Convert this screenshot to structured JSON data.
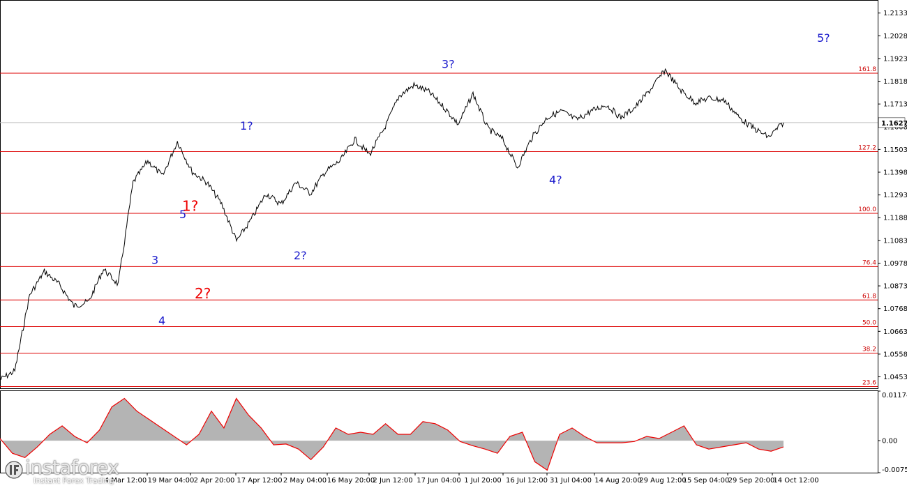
{
  "chart_data": [
    {
      "type": "line",
      "pane": "price",
      "title": "",
      "xlabel": "",
      "ylabel": "",
      "ylim": [
        1.04,
        1.219
      ],
      "y_ticks": [
        "1.2133",
        "1.2028",
        "1.1923",
        "1.1818",
        "1.1713",
        "1.1608",
        "1.1503",
        "1.1398",
        "1.1293",
        "1.1188",
        "1.1083",
        "1.0978",
        "1.0873",
        "1.0768",
        "1.0663",
        "1.0558",
        "1.0453"
      ],
      "x_ticks": [
        "4 Mar 12:00",
        "19 Mar 04:00",
        "2 Apr 20:00",
        "17 Apr 12:00",
        "2 May 04:00",
        "16 May 20:00",
        "2 Jun 12:00",
        "17 Jun 04:00",
        "1 Jul 20:00",
        "16 Jul 12:00",
        "31 Jul 04:00",
        "14 Aug 20:00",
        "29 Aug 12:00",
        "15 Sep 04:00",
        "29 Sep 20:00",
        "14 Oct 12:00"
      ],
      "current_price": "1.1627",
      "fib_levels": [
        {
          "label": "161.8",
          "price": 1.1855
        },
        {
          "label": "127.2",
          "price": 1.1493
        },
        {
          "label": "100.0",
          "price": 1.1208
        },
        {
          "label": "76.4",
          "price": 1.0962
        },
        {
          "label": "61.8",
          "price": 1.0808
        },
        {
          "label": "50.0",
          "price": 1.0685
        },
        {
          "label": "38.2",
          "price": 1.0562
        },
        {
          "label": "23.6",
          "price": 1.0408
        }
      ],
      "wave_labels": [
        {
          "text": "3",
          "color": "blue",
          "x": "19 Mar 04:00",
          "price": 1.0975
        },
        {
          "text": "4",
          "color": "blue",
          "x": "19 Mar 04:00",
          "price": 1.0695
        },
        {
          "text": "5",
          "color": "blue",
          "x": "2 Apr 20:00",
          "price": 1.1185
        },
        {
          "text": "1?",
          "color": "red",
          "x": "2 Apr 20:00",
          "price": 1.122
        },
        {
          "text": "2?",
          "color": "red",
          "x": "2 Apr 20:00",
          "price": 1.0815
        },
        {
          "text": "1?",
          "color": "blue",
          "x": "17 Apr 12:00",
          "price": 1.1595
        },
        {
          "text": "2?",
          "color": "blue",
          "x": "2 May 04:00",
          "price": 1.0995
        },
        {
          "text": "3?",
          "color": "blue",
          "x": "17 Jun 04:00",
          "price": 1.188
        },
        {
          "text": "4?",
          "color": "blue",
          "x": "31 Jul 04:00",
          "price": 1.1345
        },
        {
          "text": "5?",
          "color": "blue",
          "x": "14 Oct 12:00",
          "price": 1.2
        }
      ],
      "series": [
        {
          "x": [
            "1 Mar",
            "4 Mar",
            "8 Mar",
            "13 Mar",
            "19 Mar",
            "24 Mar",
            "29 Mar",
            "2 Apr",
            "4 Apr",
            "7 Apr",
            "10 Apr",
            "12 Apr",
            "17 Apr",
            "20 Apr",
            "25 Apr",
            "2 May",
            "6 May",
            "8 May",
            "12 May",
            "16 May",
            "20 May",
            "26 May",
            "2 Jun",
            "6 Jun",
            "10 Jun",
            "13 Jun",
            "17 Jun",
            "20 Jun",
            "24 Jun",
            "1 Jul",
            "6 Jul",
            "10 Jul",
            "16 Jul",
            "21 Jul",
            "28 Jul",
            "31 Jul",
            "4 Aug",
            "9 Aug",
            "14 Aug",
            "19 Aug",
            "24 Aug",
            "29 Aug",
            "3 Sep",
            "8 Sep",
            "13 Sep",
            "15 Sep",
            "18 Sep",
            "22 Sep",
            "26 Sep",
            "29 Sep",
            "3 Oct",
            "8 Oct",
            "12 Oct",
            "14 Oct"
          ],
          "values": [
            1.044,
            1.048,
            1.083,
            1.094,
            1.088,
            1.078,
            1.08,
            1.095,
            1.088,
            1.135,
            1.145,
            1.138,
            1.154,
            1.14,
            1.135,
            1.125,
            1.108,
            1.118,
            1.13,
            1.125,
            1.135,
            1.13,
            1.14,
            1.145,
            1.155,
            1.148,
            1.16,
            1.175,
            1.18,
            1.177,
            1.17,
            1.162,
            1.176,
            1.16,
            1.155,
            1.142,
            1.156,
            1.165,
            1.168,
            1.164,
            1.168,
            1.171,
            1.165,
            1.17,
            1.178,
            1.187,
            1.178,
            1.172,
            1.174,
            1.173,
            1.165,
            1.16,
            1.156,
            1.1627
          ]
        }
      ]
    },
    {
      "type": "area",
      "pane": "oscillator",
      "title": "",
      "ylim": [
        -0.00759,
        0.01174
      ],
      "y_ticks": [
        "0.01174",
        "0.00",
        "-0.00759"
      ],
      "series": [
        {
          "name": "histogram",
          "color": "#b4b4b4",
          "values": [
            0.0005,
            -0.003,
            -0.004,
            -0.0015,
            0.0015,
            0.0035,
            0.001,
            -0.0005,
            0.0025,
            0.008,
            0.01,
            0.007,
            0.005,
            0.003,
            0.001,
            -0.001,
            0.0015,
            0.007,
            0.003,
            0.01,
            0.006,
            0.003,
            -0.001,
            -0.0008,
            -0.002,
            -0.0045,
            -0.0015,
            0.003,
            0.0015,
            0.002,
            0.0015,
            0.004,
            0.0015,
            0.0015,
            0.0045,
            0.004,
            0.0025,
            -0.0002,
            -0.0012,
            -0.002,
            -0.003,
            0.001,
            0.002,
            -0.005,
            -0.007,
            0.0015,
            0.003,
            0.001,
            -0.0005,
            -0.0005,
            -0.0005,
            -0.0002,
            0.001,
            0.0005,
            0.002,
            0.0035,
            -0.001,
            -0.002,
            -0.0015,
            -0.001,
            -0.0005,
            -0.002,
            -0.0025,
            -0.0015
          ],
          "line_color": "#ee0000"
        }
      ]
    }
  ],
  "watermark": {
    "brand": "instaforex",
    "tagline": "Instant Forex Trading"
  }
}
